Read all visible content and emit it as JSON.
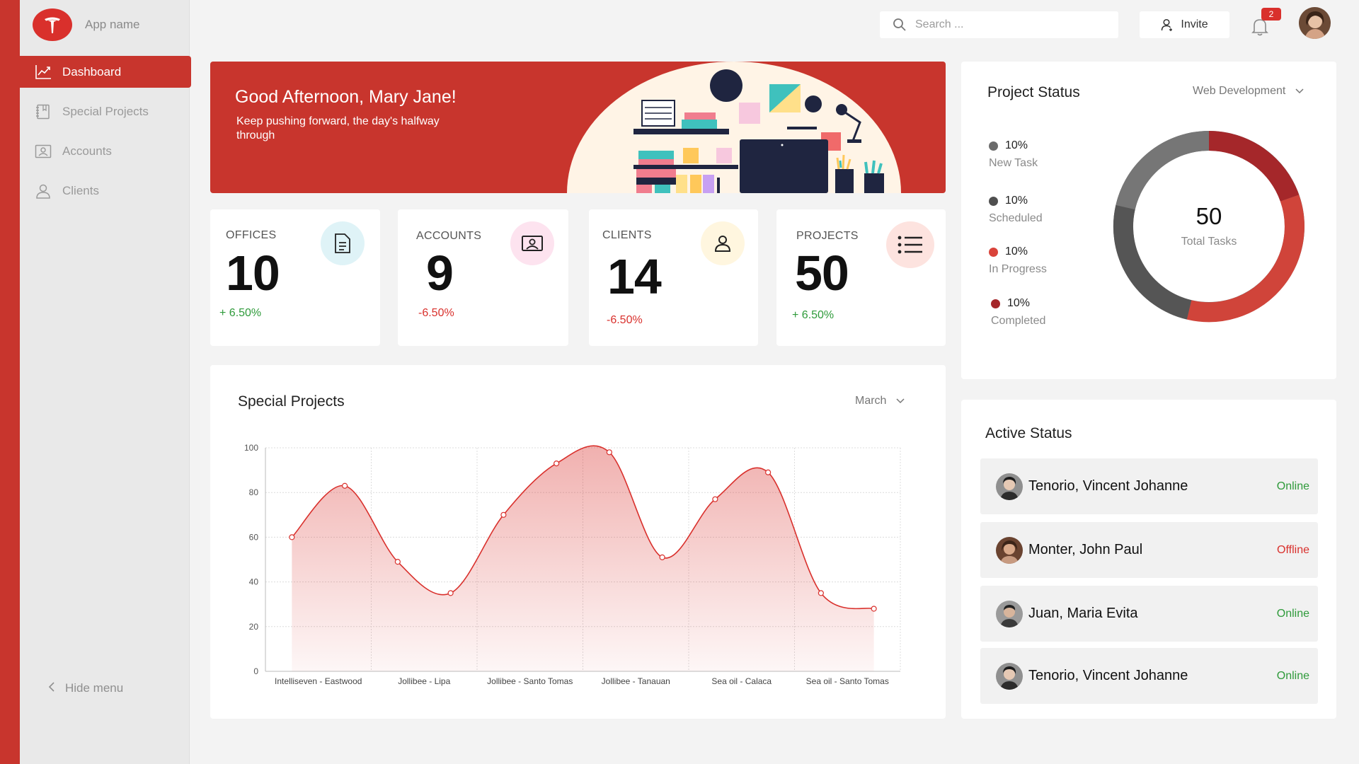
{
  "app": {
    "name": "App name"
  },
  "sidebar": {
    "items": [
      {
        "label": "Dashboard",
        "icon": "chart-line-icon",
        "active": true
      },
      {
        "label": "Special Projects",
        "icon": "notebook-icon",
        "active": false
      },
      {
        "label": "Accounts",
        "icon": "id-card-icon",
        "active": false
      },
      {
        "label": "Clients",
        "icon": "user-icon",
        "active": false
      }
    ],
    "hide_menu": "Hide menu"
  },
  "topbar": {
    "search_placeholder": "Search ...",
    "invite_label": "Invite",
    "notification_count": "2"
  },
  "banner": {
    "greeting": "Good Afternoon, Mary Jane!",
    "subtitle": "Keep pushing forward, the day's halfway through"
  },
  "stats": [
    {
      "label": "OFFICES",
      "value": "10",
      "delta": "+ 6.50%",
      "trend": "up",
      "icon": "document-icon"
    },
    {
      "label": "ACCOUNTS",
      "value": "9",
      "delta": "-6.50%",
      "trend": "down",
      "icon": "id-card-icon"
    },
    {
      "label": "CLIENTS",
      "value": "14",
      "delta": "-6.50%",
      "trend": "down",
      "icon": "user-icon"
    },
    {
      "label": "PROJECTS",
      "value": "50",
      "delta": "+ 6.50%",
      "trend": "up",
      "icon": "list-icon"
    }
  ],
  "special_projects": {
    "title": "Special Projects",
    "month": "March"
  },
  "chart_data": {
    "type": "area",
    "title": "Special Projects",
    "xlabel": "",
    "ylabel": "",
    "ylim": [
      0,
      100
    ],
    "yticks": [
      0,
      20,
      40,
      60,
      80,
      100
    ],
    "category_labels": [
      "Intelliseven - Eastwood",
      "Jollibee -  Lipa",
      "Jollibee - Santo Tomas",
      "Jollibee - Tanauan",
      "Sea oil - Calaca",
      "Sea oil - Santo Tomas"
    ],
    "x": [
      0.25,
      0.75,
      1.25,
      1.75,
      2.25,
      2.75,
      3.25,
      3.75,
      4.25,
      4.75,
      5.25,
      5.75
    ],
    "values": [
      60,
      83,
      49,
      35,
      70,
      93,
      98,
      51,
      77,
      89,
      35,
      28
    ],
    "grid": true,
    "color": "#d9302c"
  },
  "project_status": {
    "title": "Project Status",
    "filter": "Web Development",
    "total": "50",
    "total_label": "Total Tasks",
    "legend": [
      {
        "pct": "10%",
        "name": "New Task",
        "color": "#6b6b6b"
      },
      {
        "pct": "10%",
        "name": "Scheduled",
        "color": "#4f4f4f"
      },
      {
        "pct": "10%",
        "name": "In Progress",
        "color": "#d9433a"
      },
      {
        "pct": "10%",
        "name": "Completed",
        "color": "#a5272a"
      }
    ]
  },
  "active_status": {
    "title": "Active Status",
    "users": [
      {
        "name": "Tenorio, Vincent Johanne",
        "status": "Online"
      },
      {
        "name": "Monter,  John Paul",
        "status": "Offline"
      },
      {
        "name": "Juan, Maria Evita",
        "status": "Online"
      },
      {
        "name": "Tenorio, Vincent Johanne",
        "status": "Online"
      }
    ]
  }
}
